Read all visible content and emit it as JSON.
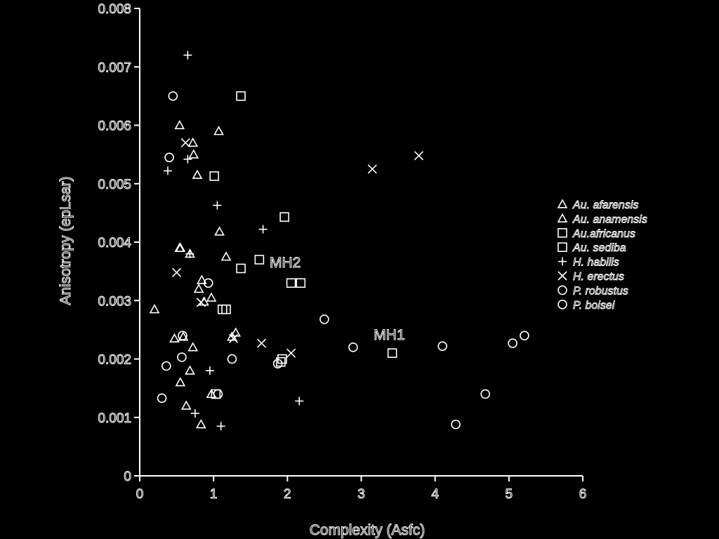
{
  "chart_data": {
    "type": "scatter",
    "xlabel": "Complexity (Asfc)",
    "ylabel": "Anisotropy (epLsar)",
    "xlim": [
      0,
      6
    ],
    "ylim": [
      0,
      0.008
    ],
    "x_ticks": [
      "0",
      "1",
      "2",
      "3",
      "4",
      "5",
      "6"
    ],
    "y_ticks": [
      "0",
      "0.001",
      "0.002",
      "0.003",
      "0.004",
      "0.005",
      "0.006",
      "0.007",
      "0.008"
    ],
    "legend_position": "right",
    "annotations": [
      {
        "text": "MH2",
        "x": 1.97,
        "y": 0.00357
      },
      {
        "text": "MH1",
        "x": 3.38,
        "y": 0.00233
      }
    ],
    "series": [
      {
        "name": "Au. afarensis",
        "marker": "triangle",
        "points": [
          [
            0.2,
            0.00285
          ],
          [
            0.47,
            0.00235
          ],
          [
            0.55,
            0.0016
          ],
          [
            0.63,
            0.0012
          ],
          [
            0.68,
            0.0018
          ],
          [
            0.72,
            0.0022
          ],
          [
            0.83,
            0.00088
          ],
          [
            0.8,
            0.0032
          ],
          [
            0.84,
            0.00335
          ],
          [
            0.97,
            0.00305
          ],
          [
            0.54,
            0.006
          ],
          [
            0.73,
            0.0055
          ],
          [
            0.78,
            0.00515
          ],
          [
            1.07,
            0.0059
          ],
          [
            1.08,
            0.00418
          ],
          [
            1.17,
            0.00375
          ],
          [
            0.54,
            0.0039
          ],
          [
            0.68,
            0.0038
          ],
          [
            1.3,
            0.00245
          ],
          [
            0.72,
            0.0057
          ]
        ]
      },
      {
        "name": "Au. anamensis",
        "marker": "triangle",
        "points": [
          [
            0.97,
            0.0014
          ],
          [
            0.59,
            0.00238
          ],
          [
            1.25,
            0.00238
          ],
          [
            0.87,
            0.00298
          ],
          [
            0.55,
            0.0039
          ]
        ]
      },
      {
        "name": "Au.africanus",
        "marker": "square",
        "points": [
          [
            1.12,
            0.00285
          ],
          [
            1.03,
            0.0014
          ],
          [
            1.91,
            0.00195
          ],
          [
            1.62,
            0.0037
          ],
          [
            1.17,
            0.00285
          ]
        ]
      },
      {
        "name": "Au. sediba",
        "marker": "square",
        "points": [
          [
            1.37,
            0.0065
          ],
          [
            1.01,
            0.00513
          ],
          [
            1.96,
            0.00443
          ],
          [
            1.37,
            0.00355
          ],
          [
            2.05,
            0.0033
          ],
          [
            2.18,
            0.0033
          ],
          [
            3.42,
            0.0021
          ],
          [
            1.93,
            0.002
          ]
        ]
      },
      {
        "name": "H. habilis",
        "marker": "plus",
        "points": [
          [
            0.65,
            0.0072
          ],
          [
            0.38,
            0.00522
          ],
          [
            0.65,
            0.00542
          ],
          [
            1.05,
            0.00463
          ],
          [
            1.67,
            0.00422
          ],
          [
            0.68,
            0.0038
          ],
          [
            0.95,
            0.0018
          ],
          [
            0.75,
            0.00107
          ],
          [
            1.1,
            0.00085
          ],
          [
            2.16,
            0.00128
          ]
        ]
      },
      {
        "name": "H. erectus",
        "marker": "x",
        "points": [
          [
            3.78,
            0.00548
          ],
          [
            3.15,
            0.00525
          ],
          [
            0.5,
            0.00348
          ],
          [
            0.83,
            0.00297
          ],
          [
            1.27,
            0.00235
          ],
          [
            1.65,
            0.00227
          ],
          [
            2.05,
            0.0021
          ],
          [
            0.62,
            0.0057
          ]
        ]
      },
      {
        "name": "P. robustus",
        "marker": "circle",
        "points": [
          [
            2.5,
            0.00268
          ],
          [
            2.89,
            0.0022
          ],
          [
            4.1,
            0.00222
          ],
          [
            5.05,
            0.00227
          ],
          [
            5.21,
            0.0024
          ],
          [
            4.68,
            0.0014
          ],
          [
            4.28,
            0.00088
          ],
          [
            1.25,
            0.002
          ],
          [
            0.57,
            0.00203
          ],
          [
            0.3,
            0.00133
          ],
          [
            1.87,
            0.00192
          ],
          [
            0.93,
            0.0033
          ]
        ]
      },
      {
        "name": "P. boisei",
        "marker": "circle",
        "points": [
          [
            0.45,
            0.0065
          ],
          [
            0.4,
            0.00545
          ],
          [
            0.36,
            0.00188
          ],
          [
            0.58,
            0.0024
          ],
          [
            1.06,
            0.0014
          ]
        ]
      }
    ]
  }
}
